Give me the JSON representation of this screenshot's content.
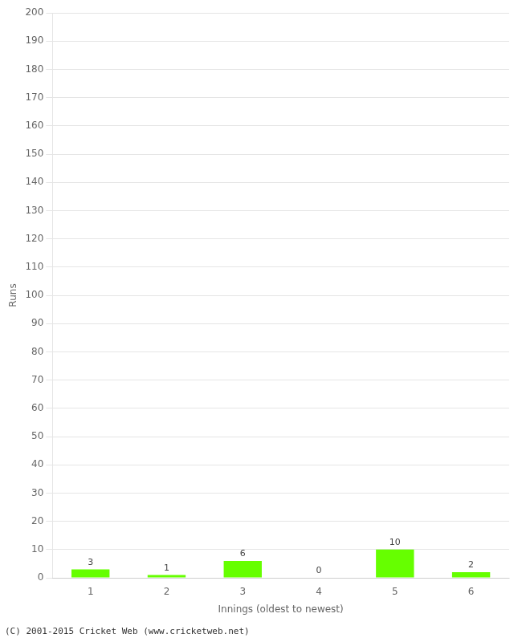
{
  "chart_data": {
    "type": "bar",
    "xlabel": "Innings (oldest to newest)",
    "ylabel": "Runs",
    "categories": [
      "1",
      "2",
      "3",
      "4",
      "5",
      "6"
    ],
    "values": [
      3,
      1,
      6,
      0,
      10,
      2
    ],
    "color": "#66ff00",
    "ylim": [
      0,
      200
    ],
    "yticks": [
      0,
      10,
      20,
      30,
      40,
      50,
      60,
      70,
      80,
      90,
      100,
      110,
      120,
      130,
      140,
      150,
      160,
      170,
      180,
      190,
      200
    ],
    "grid": true,
    "data_labels": true,
    "annotations": [
      "(C) 2001-2015 Cricket Web (www.cricketweb.net)"
    ]
  }
}
